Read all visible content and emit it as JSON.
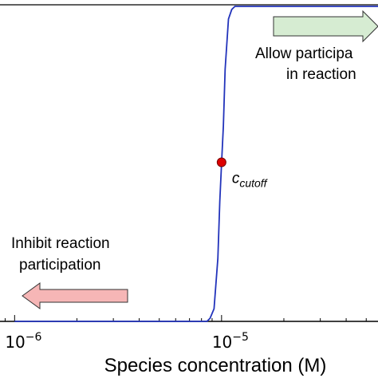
{
  "chart_data": {
    "type": "line",
    "xscale": "log",
    "xlabel": "Species concentration (M)",
    "x_ticks": [
      {
        "value": 1e-06,
        "base": "10",
        "exp": "−6"
      },
      {
        "value": 1e-05,
        "base": "10",
        "exp": "−5"
      }
    ],
    "xlim": [
      8.5e-07,
      5.7e-05
    ],
    "ylim": [
      0,
      1
    ],
    "series": [
      {
        "color": "#2233bb",
        "points": [
          [
            1e-06,
            0
          ],
          [
            3e-06,
            0
          ],
          [
            8.5e-06,
            0
          ],
          [
            8.8e-06,
            0.01
          ],
          [
            9.2e-06,
            0.04
          ],
          [
            9.6e-06,
            0.2
          ],
          [
            9.8e-06,
            0.38
          ],
          [
            1e-05,
            0.5
          ],
          [
            1.02e-05,
            0.62
          ],
          [
            1.04e-05,
            0.8
          ],
          [
            1.08e-05,
            0.96
          ],
          [
            1.12e-05,
            0.99
          ],
          [
            1.16e-05,
            1.0
          ],
          [
            2e-05,
            1.0
          ],
          [
            6e-05,
            1.0
          ]
        ]
      }
    ],
    "cutoff_marker": {
      "x": 1e-05,
      "y": 0.5,
      "color": "#dd0000",
      "label": "c",
      "label_sub": "cutoff"
    },
    "annotations": {
      "right": {
        "line1": "Allow participa",
        "line2": "in reaction",
        "arrow_color": "#d6ecd2",
        "direction": "right"
      },
      "left": {
        "line1": "Inhibit reaction",
        "line2": "participation",
        "arrow_color": "#f6b6b6",
        "direction": "left"
      }
    }
  }
}
